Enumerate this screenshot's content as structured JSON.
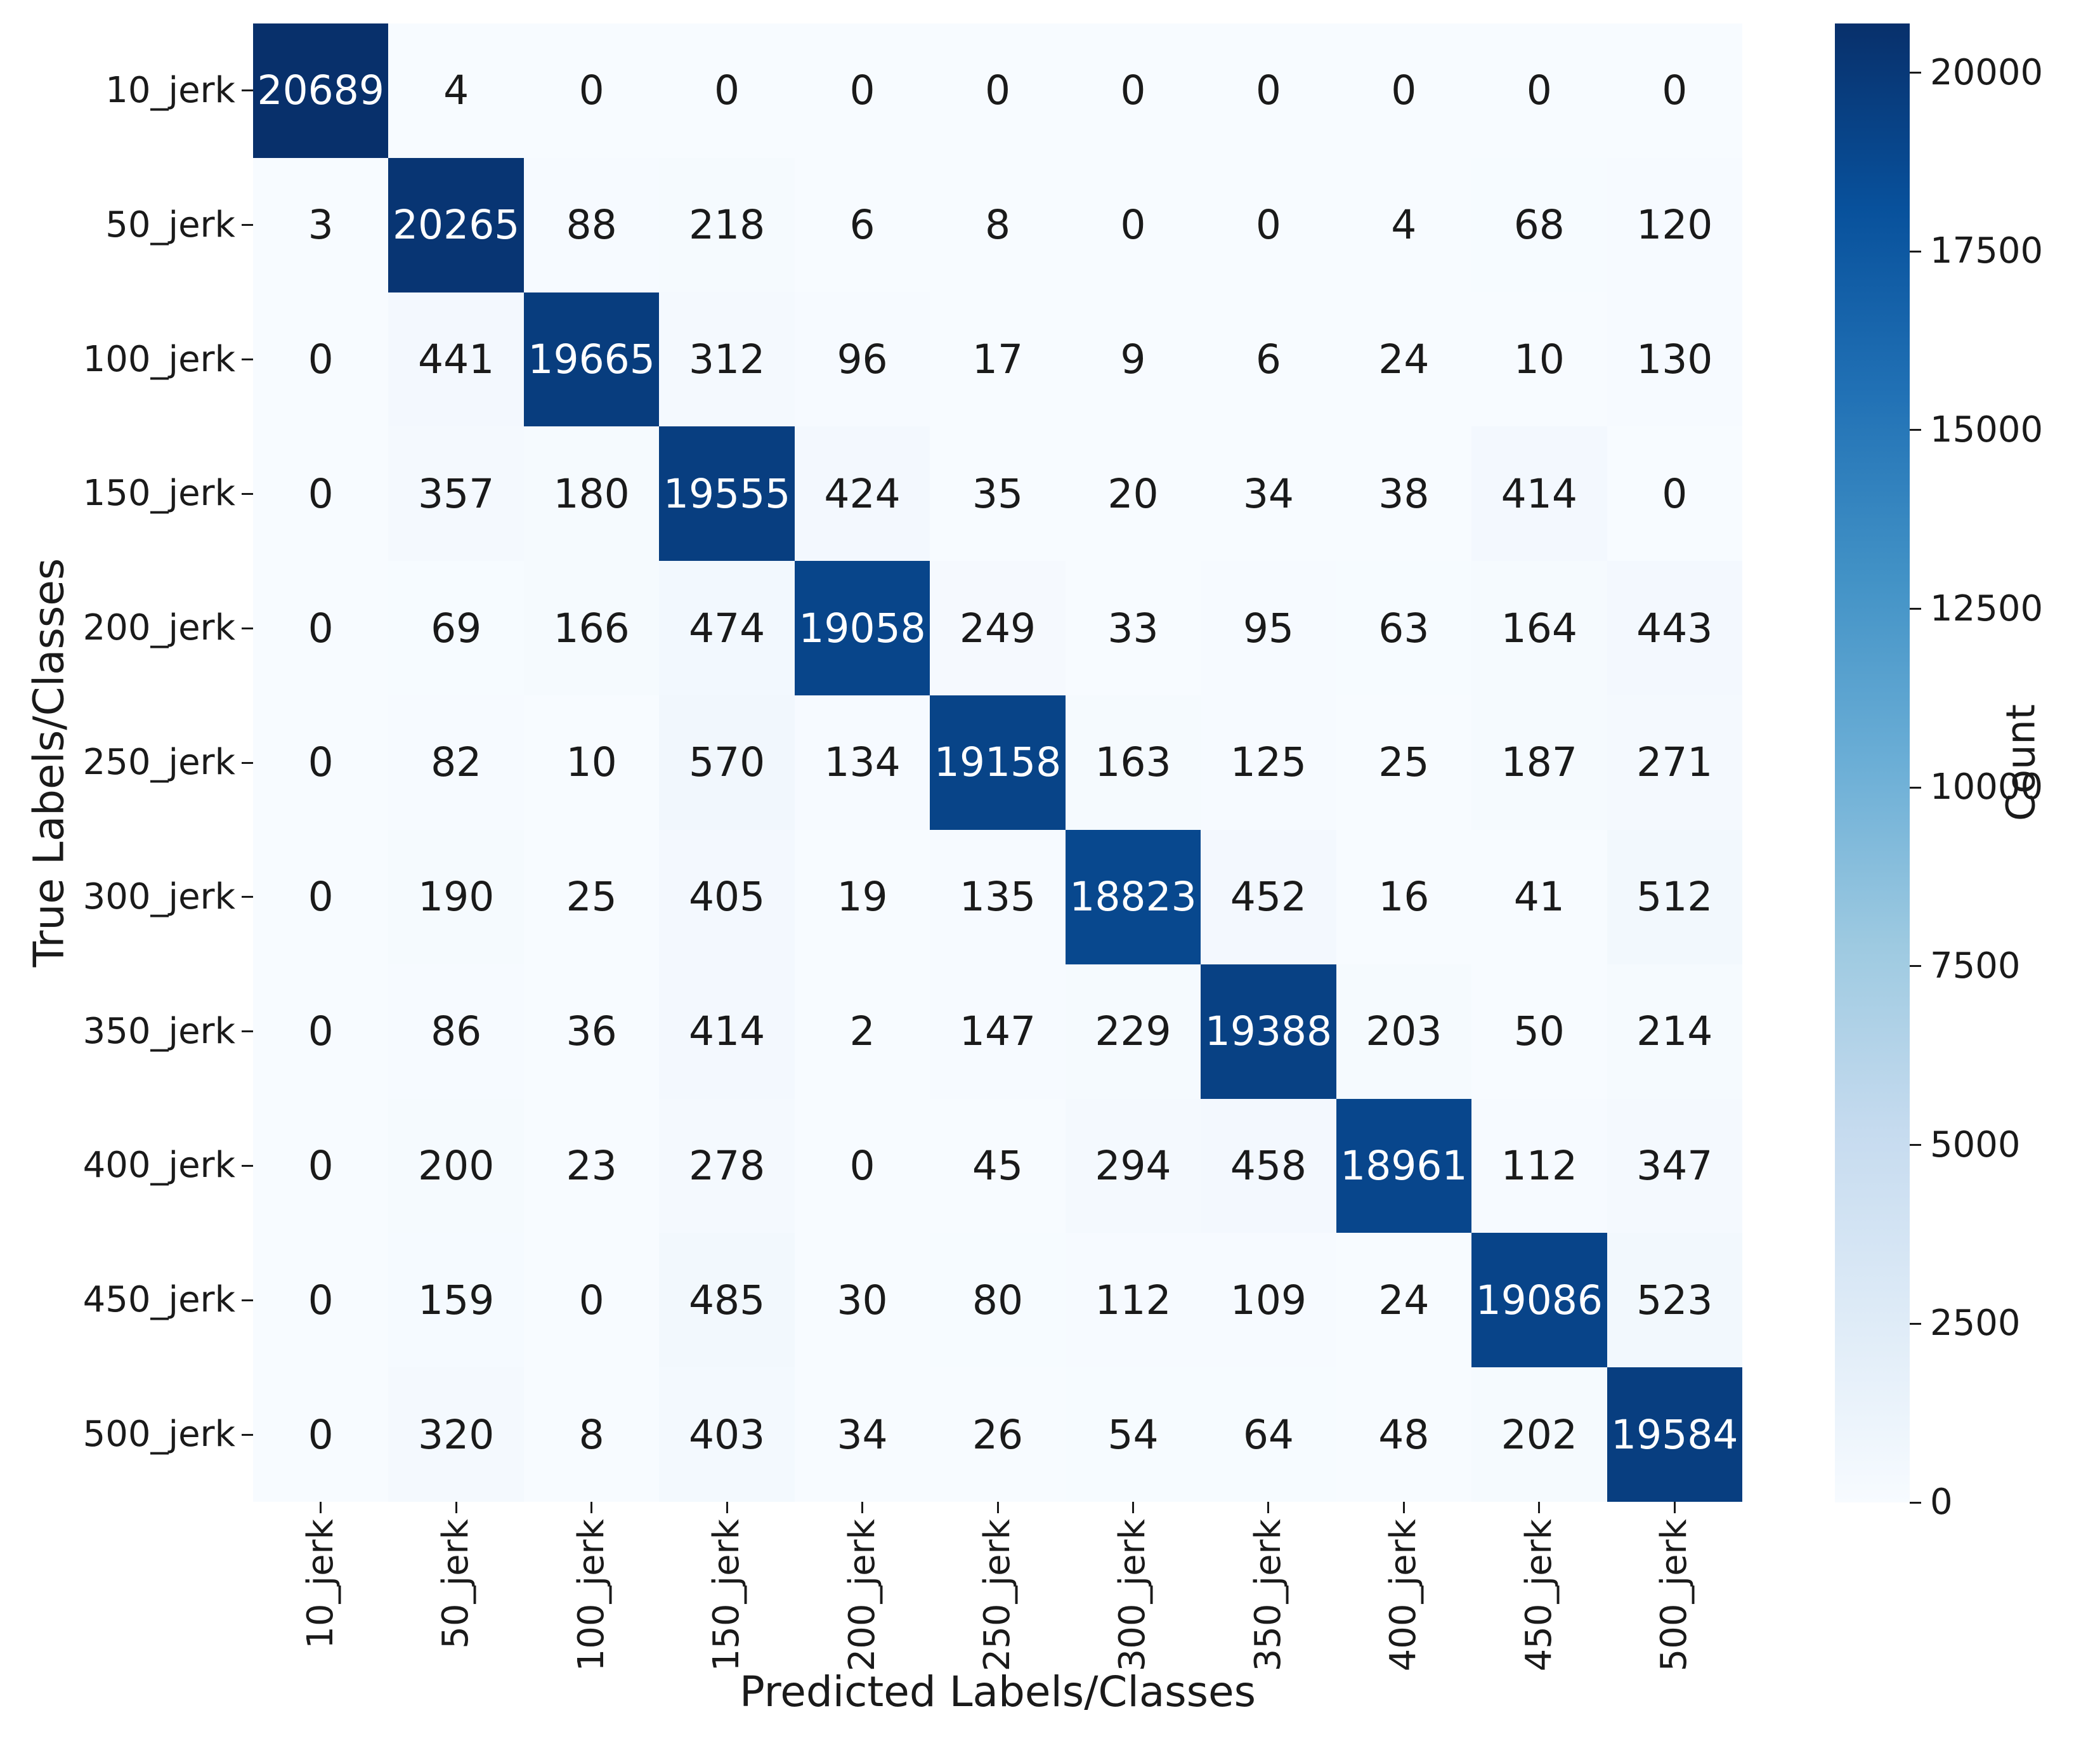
{
  "chart_data": {
    "type": "heatmap",
    "xlabel": "Predicted Labels/Classes",
    "ylabel": "True Labels/Classes",
    "colorbar_label": "Count",
    "categories": [
      "10_jerk",
      "50_jerk",
      "100_jerk",
      "150_jerk",
      "200_jerk",
      "250_jerk",
      "300_jerk",
      "350_jerk",
      "400_jerk",
      "450_jerk",
      "500_jerk"
    ],
    "matrix": [
      [
        20689,
        4,
        0,
        0,
        0,
        0,
        0,
        0,
        0,
        0,
        0
      ],
      [
        3,
        20265,
        88,
        218,
        6,
        8,
        0,
        0,
        4,
        68,
        120
      ],
      [
        0,
        441,
        19665,
        312,
        96,
        17,
        9,
        6,
        24,
        10,
        130
      ],
      [
        0,
        357,
        180,
        19555,
        424,
        35,
        20,
        34,
        38,
        414,
        0
      ],
      [
        0,
        69,
        166,
        474,
        19058,
        249,
        33,
        95,
        63,
        164,
        443
      ],
      [
        0,
        82,
        10,
        570,
        134,
        19158,
        163,
        125,
        25,
        187,
        271
      ],
      [
        0,
        190,
        25,
        405,
        19,
        135,
        18823,
        452,
        16,
        41,
        512
      ],
      [
        0,
        86,
        36,
        414,
        2,
        147,
        229,
        19388,
        203,
        50,
        214
      ],
      [
        0,
        200,
        23,
        278,
        0,
        45,
        294,
        458,
        18961,
        112,
        347
      ],
      [
        0,
        159,
        0,
        485,
        30,
        80,
        112,
        109,
        24,
        19086,
        523
      ],
      [
        0,
        320,
        8,
        403,
        34,
        26,
        54,
        64,
        48,
        202,
        19584
      ]
    ],
    "vmin": 0,
    "vmax": 20689,
    "colorbar_ticks": [
      0,
      2500,
      5000,
      7500,
      10000,
      12500,
      15000,
      17500,
      20000
    ],
    "colormap": "Blues",
    "colormap_stops": [
      "#f7fbff",
      "#deebf7",
      "#c6dbef",
      "#9ecae1",
      "#6baed6",
      "#4292c6",
      "#2171b5",
      "#08519c",
      "#08306b"
    ],
    "annotation_text_dark": "#1a1a1a",
    "annotation_text_light": "#ffffff",
    "grid": false,
    "legend_position": "colorbar-right"
  }
}
